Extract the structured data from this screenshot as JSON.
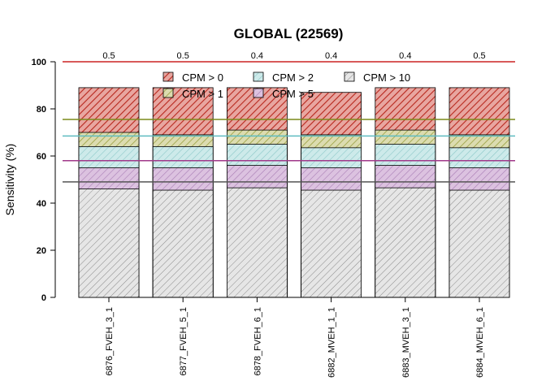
{
  "chart_data": {
    "type": "bar",
    "title": "GLOBAL (22569)",
    "ylabel": "Sensitivity (%)",
    "ylim": [
      0,
      100
    ],
    "yticks": [
      "0",
      "20",
      "40",
      "60",
      "80",
      "100"
    ],
    "categories": [
      "6876_FVEH_3_1",
      "6877_FVEH_5_1",
      "6878_FVEH_6_1",
      "6882_MVEH_1_1",
      "6883_MVEH_3_1",
      "6884_MVEH_6_1"
    ],
    "top_labels": [
      "0.5",
      "0.5",
      "0.4",
      "0.4",
      "0.4",
      "0.5"
    ],
    "legend": [
      "CPM > 0",
      "CPM > 1",
      "CPM > 2",
      "CPM > 5",
      "CPM > 10"
    ],
    "series": [
      {
        "name": "CPM > 0",
        "color": "#cc3a2e",
        "values": [
          89,
          89,
          89,
          87,
          89,
          89
        ]
      },
      {
        "name": "CPM > 1",
        "color": "#c2c88a",
        "values": [
          70,
          69,
          71,
          69,
          71,
          69
        ]
      },
      {
        "name": "CPM > 2",
        "color": "#b8e0e0",
        "values": [
          64,
          64,
          65,
          63.5,
          65,
          63.5
        ]
      },
      {
        "name": "CPM > 5",
        "color": "#c9a4d1",
        "values": [
          55,
          55,
          56,
          55,
          56,
          55
        ]
      },
      {
        "name": "CPM > 10",
        "color": "#bdbdbd",
        "values": [
          46,
          45.5,
          46.5,
          45.5,
          46.5,
          45.5
        ]
      }
    ],
    "reference_lines": [
      {
        "value": 100,
        "color": "#cc2222"
      },
      {
        "value": 75.5,
        "color": "#7a8a1a"
      },
      {
        "value": 68.5,
        "color": "#5fbcc0"
      },
      {
        "value": 58,
        "color": "#a0388a"
      },
      {
        "value": 49,
        "color": "#555555"
      }
    ],
    "grid": false,
    "legend_position": "top-center"
  }
}
